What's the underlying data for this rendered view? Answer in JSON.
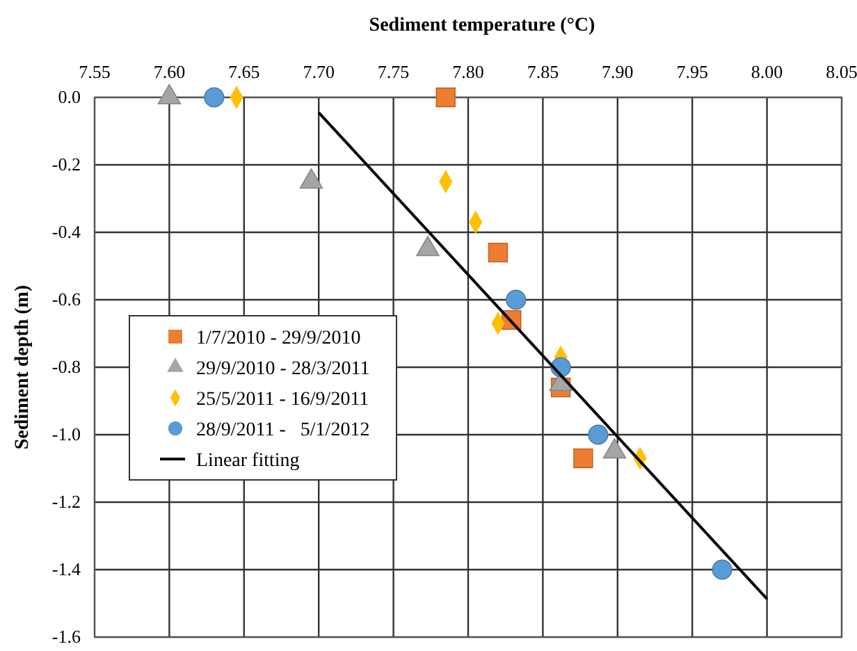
{
  "chart_data": {
    "type": "scatter",
    "xlabel": "Sediment temperature (°C)",
    "ylabel": "Sediment depth (m)",
    "xlim": [
      7.55,
      8.05
    ],
    "ylim": [
      -1.6,
      0
    ],
    "xticks": [
      {
        "value": 7.55,
        "label": "7.55"
      },
      {
        "value": 7.6,
        "label": "7.60"
      },
      {
        "value": 7.65,
        "label": "7.65"
      },
      {
        "value": 7.7,
        "label": "7.70"
      },
      {
        "value": 7.75,
        "label": "7.75"
      },
      {
        "value": 7.8,
        "label": "7.80"
      },
      {
        "value": 7.85,
        "label": "7.85"
      },
      {
        "value": 7.9,
        "label": "7.90"
      },
      {
        "value": 7.95,
        "label": "7.95"
      },
      {
        "value": 8.0,
        "label": "8.00"
      },
      {
        "value": 8.05,
        "label": "8.05"
      }
    ],
    "yticks": [
      {
        "value": 0,
        "label": "0.0"
      },
      {
        "value": -0.2,
        "label": "-0.2"
      },
      {
        "value": -0.4,
        "label": "-0.4"
      },
      {
        "value": -0.6,
        "label": "-0.6"
      },
      {
        "value": -0.8,
        "label": "-0.8"
      },
      {
        "value": -1.0,
        "label": "-1.0"
      },
      {
        "value": -1.2,
        "label": "-1.2"
      },
      {
        "value": -1.4,
        "label": "-1.4"
      },
      {
        "value": -1.6,
        "label": "-1.6"
      }
    ],
    "grid": true,
    "legend": "left",
    "series": [
      {
        "name": "1/7/2010 - 29/9/2010",
        "color": "#ed7d31",
        "marker": "square",
        "x": [
          7.785,
          7.82,
          7.829,
          7.862,
          7.877
        ],
        "values": [
          0,
          -0.46,
          -0.66,
          -0.86,
          -1.07
        ]
      },
      {
        "name": "29/9/2010 - 28/3/2011",
        "color": "#a5a5a5",
        "marker": "triangle",
        "x": [
          7.6,
          7.695,
          7.773,
          7.862,
          7.898
        ],
        "values": [
          0,
          -0.25,
          -0.45,
          -0.85,
          -1.05
        ]
      },
      {
        "name": "25/5/2011 - 16/9/2011",
        "color": "#ffc000",
        "marker": "diamond",
        "x": [
          7.645,
          7.785,
          7.805,
          7.82,
          7.862,
          7.915
        ],
        "values": [
          0,
          -0.25,
          -0.37,
          -0.67,
          -0.77,
          -1.07
        ]
      },
      {
        "name": "28/9/2011 -   5/1/2012",
        "color": "#5b9bd5",
        "marker": "circle",
        "x": [
          7.63,
          7.832,
          7.862,
          7.887,
          7.97
        ],
        "values": [
          0,
          -0.6,
          -0.8,
          -1.0,
          -1.4
        ]
      },
      {
        "name": "Linear fitting",
        "type": "line",
        "color": "#000000",
        "marker": "none",
        "x": [
          7.7,
          8.0
        ],
        "values": [
          -0.045,
          -1.487
        ]
      }
    ]
  }
}
